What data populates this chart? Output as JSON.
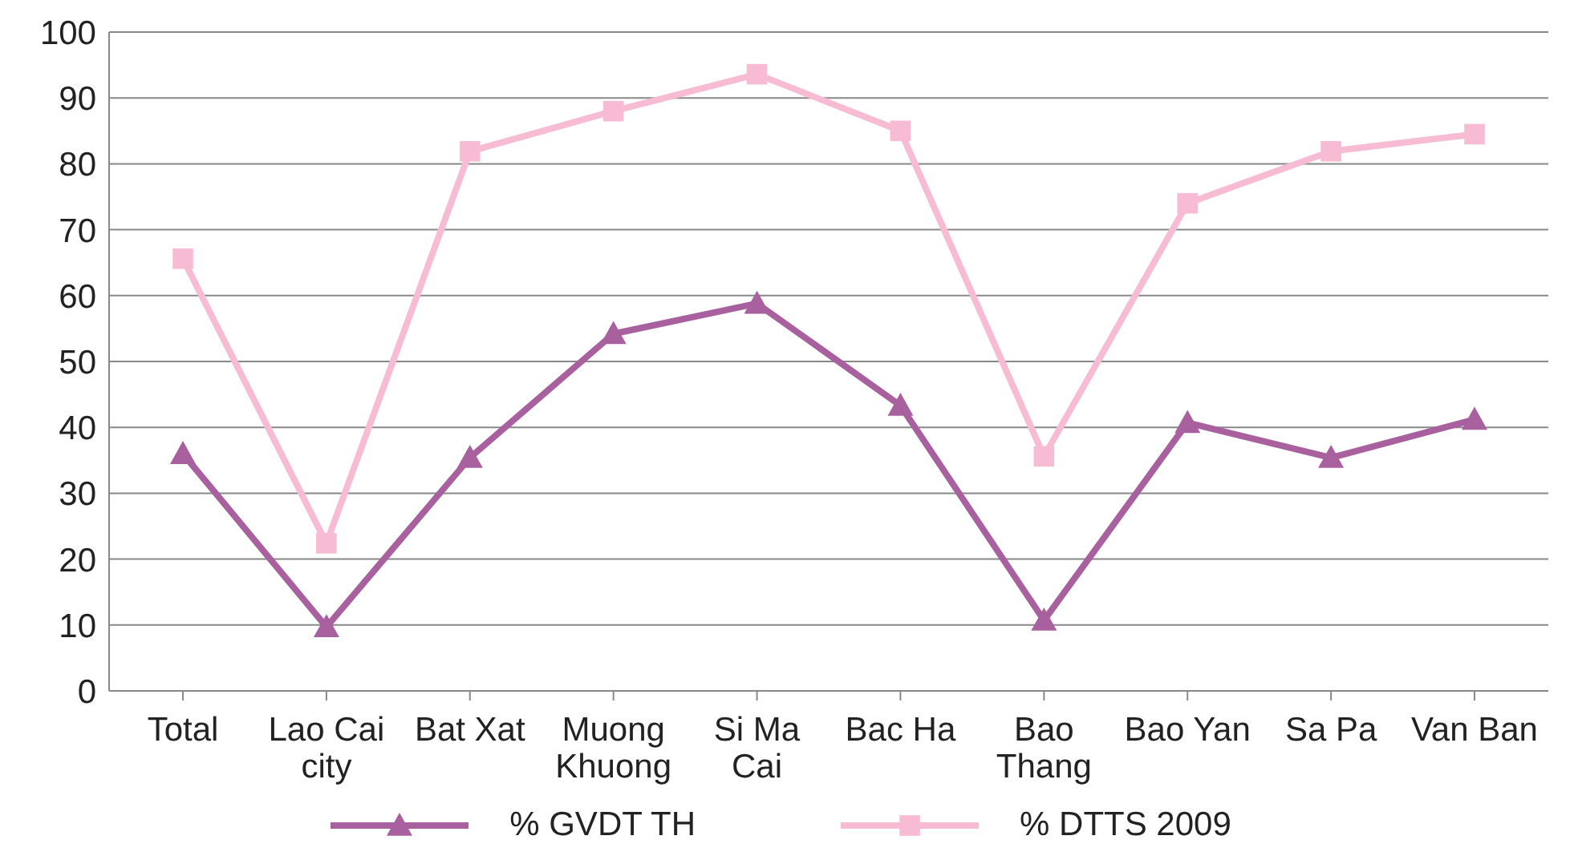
{
  "chart_data": {
    "type": "line",
    "categories": [
      "Total",
      "Lao Cai city",
      "Bat Xat",
      "Muong Khuong",
      "Si Ma Cai",
      "Bac Ha",
      "Bao Thang",
      "Bao Yan",
      "Sa Pa",
      "Van Ban"
    ],
    "series": [
      {
        "name": "% GVDT TH",
        "color": "#a8609f",
        "marker": "triangle",
        "values": [
          36,
          9.7,
          35.4,
          54.2,
          58.8,
          43.3,
          10.7,
          40.7,
          35.4,
          41.2
        ]
      },
      {
        "name": "% DTTS 2009",
        "color": "#f7bcd4",
        "marker": "square",
        "values": [
          65.6,
          22.4,
          81.9,
          88,
          93.6,
          85,
          35.6,
          74,
          81.9,
          84.5
        ]
      }
    ],
    "ylim": [
      0,
      100
    ],
    "yticks": [
      0,
      10,
      20,
      30,
      40,
      50,
      60,
      70,
      80,
      90,
      100
    ],
    "grid": "y",
    "legend": "bottom",
    "line_style": "solid"
  }
}
